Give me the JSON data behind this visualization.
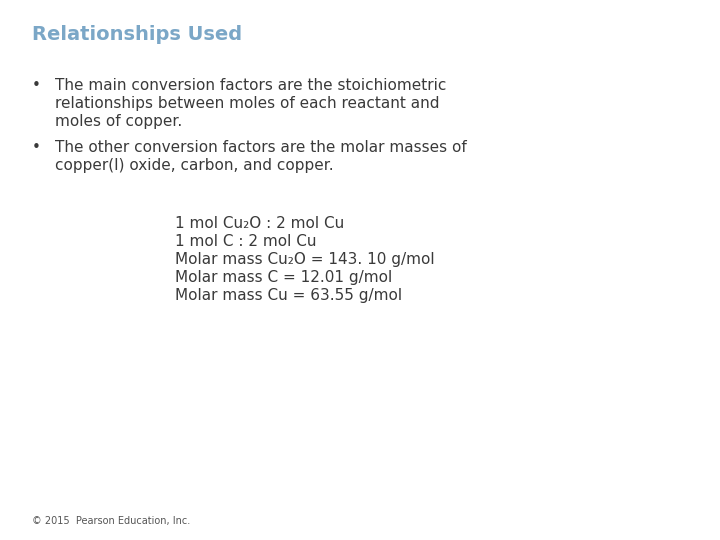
{
  "title": "Relationships Used",
  "title_color": "#7BA7C7",
  "title_fontsize": 14,
  "bg_color": "#ffffff",
  "bullet1_line1": "The main conversion factors are the stoichiometric",
  "bullet1_line2": "relationships between moles of each reactant and",
  "bullet1_line3": "moles of copper.",
  "bullet2_line1": "The other conversion factors are the molar masses of",
  "bullet2_line2": "copper(I) oxide, carbon, and copper.",
  "centered_line1": "1 mol Cu₂O : 2 mol Cu",
  "centered_line2": "1 mol C : 2 mol Cu",
  "centered_line3": "Molar mass Cu₂O = 143. 10 g/mol",
  "centered_line4": "Molar mass C = 12.01 g/mol",
  "centered_line5": "Molar mass Cu = 63.55 g/mol",
  "footer": "© 2015  Pearson Education, Inc.",
  "body_fontsize": 11,
  "centered_fontsize": 11,
  "footer_fontsize": 7,
  "text_color": "#3a3a3a"
}
